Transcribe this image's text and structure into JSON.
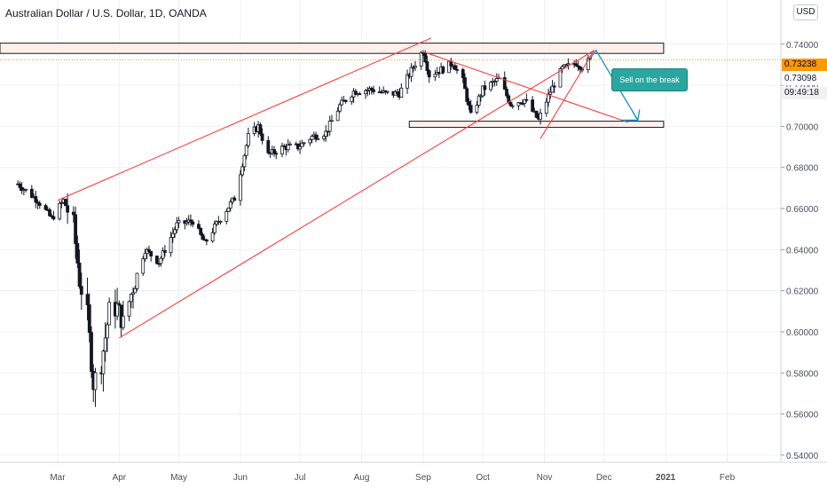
{
  "header": {
    "title": "Australian Dollar / U.S. Dollar, 1D, OANDA",
    "currency_button": "USD"
  },
  "price_axis": {
    "tags": {
      "current_price": "0.73238",
      "crosshair_price": "0.73098",
      "countdown": "09:49:18"
    }
  },
  "annotation": {
    "label": "Sell on the break"
  },
  "colors": {
    "up": "#26a69a",
    "down": "#26a69a",
    "candle_body": "#ffffff",
    "candle_outline": "#131722",
    "trendline": "#ff3b3b",
    "zone_border": "#131722",
    "zone_fill": "#fdf0ea",
    "price_line": "#ff9800",
    "projection": "#2196c9",
    "grid": "#eef0f4"
  },
  "chart_data": {
    "type": "candlestick",
    "title": "Australian Dollar / U.S. Dollar, 1D, OANDA",
    "x_tick_labels": [
      "Mar",
      "Apr",
      "May",
      "Jun",
      "Jul",
      "Aug",
      "Sep",
      "Oct",
      "Nov",
      "Dec",
      "2021",
      "Feb"
    ],
    "y_tick_labels": [
      "0.54000",
      "0.56000",
      "0.58000",
      "0.60000",
      "0.62000",
      "0.64000",
      "0.66000",
      "0.68000",
      "0.70000",
      "0.72000",
      "0.74000"
    ],
    "ylim": [
      0.5365,
      0.7615
    ],
    "grid": true,
    "close_path": [
      [
        "2020-02-10",
        0.672
      ],
      [
        "2020-02-20",
        0.664
      ],
      [
        "2020-02-27",
        0.655
      ],
      [
        "2020-03-04",
        0.664
      ],
      [
        "2020-03-09",
        0.652
      ],
      [
        "2020-03-12",
        0.625
      ],
      [
        "2020-03-16",
        0.608
      ],
      [
        "2020-03-19",
        0.575
      ],
      [
        "2020-03-23",
        0.585
      ],
      [
        "2020-03-27",
        0.61
      ],
      [
        "2020-03-31",
        0.612
      ],
      [
        "2020-04-03",
        0.604
      ],
      [
        "2020-04-08",
        0.622
      ],
      [
        "2020-04-14",
        0.64
      ],
      [
        "2020-04-21",
        0.634
      ],
      [
        "2020-04-30",
        0.652
      ],
      [
        "2020-05-08",
        0.654
      ],
      [
        "2020-05-14",
        0.643
      ],
      [
        "2020-05-21",
        0.654
      ],
      [
        "2020-05-29",
        0.665
      ],
      [
        "2020-06-05",
        0.695
      ],
      [
        "2020-06-10",
        0.7
      ],
      [
        "2020-06-15",
        0.686
      ],
      [
        "2020-06-23",
        0.69
      ],
      [
        "2020-06-30",
        0.69
      ],
      [
        "2020-07-07",
        0.695
      ],
      [
        "2020-07-14",
        0.697
      ],
      [
        "2020-07-21",
        0.71
      ],
      [
        "2020-07-28",
        0.717
      ],
      [
        "2020-08-06",
        0.718
      ],
      [
        "2020-08-13",
        0.716
      ],
      [
        "2020-08-20",
        0.716
      ],
      [
        "2020-08-27",
        0.729
      ],
      [
        "2020-09-01",
        0.737
      ],
      [
        "2020-09-04",
        0.725
      ],
      [
        "2020-09-11",
        0.728
      ],
      [
        "2020-09-16",
        0.731
      ],
      [
        "2020-09-21",
        0.722
      ],
      [
        "2020-09-25",
        0.705
      ],
      [
        "2020-10-01",
        0.718
      ],
      [
        "2020-10-09",
        0.723
      ],
      [
        "2020-10-15",
        0.711
      ],
      [
        "2020-10-22",
        0.713
      ],
      [
        "2020-10-29",
        0.703
      ],
      [
        "2020-11-04",
        0.717
      ],
      [
        "2020-11-10",
        0.728
      ],
      [
        "2020-11-17",
        0.731
      ],
      [
        "2020-11-20",
        0.729
      ],
      [
        "2020-11-24",
        0.73238
      ]
    ],
    "current_price": 0.73238,
    "zones": [
      {
        "x_start": "2020-01-01",
        "x_end": "2020-12-31",
        "y_low": 0.7355,
        "y_high": 0.7405
      },
      {
        "x_start": "2020-08-25",
        "x_end": "2020-12-31",
        "y_low": 0.6995,
        "y_high": 0.7025
      }
    ],
    "trendlines": [
      {
        "from": [
          "2020-03-01",
          0.664
        ],
        "to": [
          "2020-09-05",
          0.743
        ]
      },
      {
        "from": [
          "2020-04-01",
          0.597
        ],
        "to": [
          "2020-11-26",
          0.737
        ]
      },
      {
        "from": [
          "2020-09-02",
          0.736
        ],
        "to": [
          "2020-12-13",
          0.702
        ]
      },
      {
        "from": [
          "2020-10-30",
          0.694
        ],
        "to": [
          "2020-11-26",
          0.737
        ]
      }
    ],
    "projection": [
      [
        "2020-11-24",
        0.733
      ],
      [
        "2020-11-27",
        0.737
      ],
      [
        "2020-12-18",
        0.703
      ],
      [
        "2020-12-10",
        0.703
      ]
    ],
    "annotations": [
      {
        "text": "Sell on the break",
        "x": "2020-12-01",
        "y": 0.7262
      }
    ]
  }
}
